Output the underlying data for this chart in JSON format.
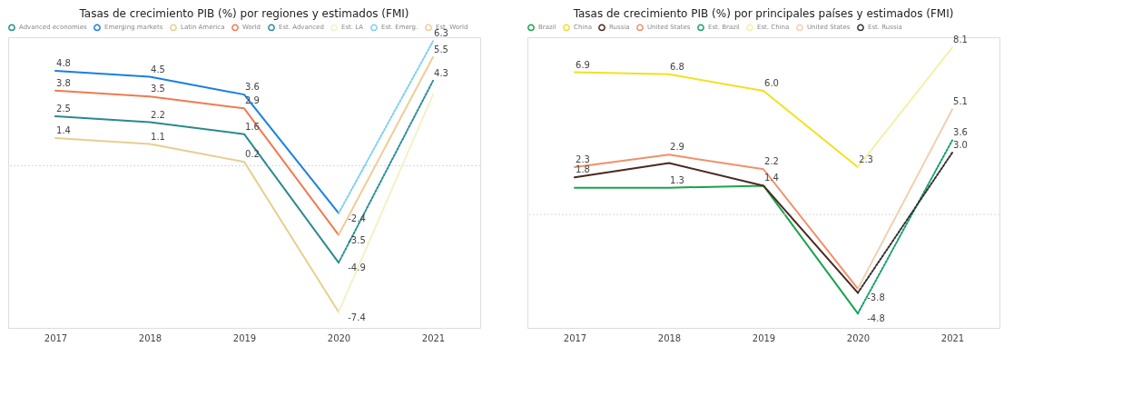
{
  "chart_data": [
    {
      "type": "line",
      "title": "Tasas de crecimiento PIB (%) por regiones y estimados (FMI)",
      "categories": [
        "2017",
        "2018",
        "2019",
        "2020",
        "2021"
      ],
      "ylim": [
        -8.2,
        6.5
      ],
      "ref_lines": [
        {
          "axis": "y",
          "value": 0,
          "color": "#d8d8d8",
          "line_style": "dotted"
        }
      ],
      "tick_labels": "x",
      "legend": "top left",
      "marker": "none",
      "series": [
        {
          "name": "Advanced economies",
          "color": "#2a8a8c",
          "line_style": "solid",
          "values": [
            2.5,
            2.2,
            1.6,
            -4.9,
            null
          ],
          "value_labels": [
            "2.5",
            "2.2",
            "1.6",
            "-4.9",
            null
          ]
        },
        {
          "name": "Emerging markets",
          "color": "#1a7fe0",
          "line_style": "solid",
          "values": [
            4.8,
            4.5,
            3.6,
            -2.4,
            null
          ],
          "value_labels": [
            "4.8",
            "4.5",
            "3.6",
            "-2.4",
            null
          ]
        },
        {
          "name": "Latin America",
          "color": "#e6cf8e",
          "line_style": "solid",
          "values": [
            1.4,
            1.1,
            0.2,
            -7.4,
            null
          ],
          "value_labels": [
            "1.4",
            "1.1",
            "0.2",
            "-7.4",
            null
          ]
        },
        {
          "name": "World",
          "color": "#f07a50",
          "line_style": "solid",
          "values": [
            3.8,
            3.5,
            2.9,
            -3.5,
            null
          ],
          "value_labels": [
            "3.8",
            "3.5",
            "2.9",
            "-3.5",
            null
          ]
        },
        {
          "name": "Est. Advanced",
          "color": "#2a8f9a",
          "line_style": "dotted",
          "values": [
            null,
            null,
            null,
            -4.9,
            4.3
          ],
          "value_labels": [
            null,
            null,
            null,
            null,
            "4.3"
          ]
        },
        {
          "name": "Est. LA",
          "color": "#f5f0c8",
          "line_style": "solid",
          "values": [
            null,
            null,
            null,
            -7.4,
            3.6
          ],
          "value_labels": [
            null,
            null,
            null,
            null,
            null
          ]
        },
        {
          "name": "Est. Emerg.",
          "color": "#7fd0f2",
          "line_style": "dotted",
          "values": [
            null,
            null,
            null,
            -2.4,
            6.3
          ],
          "value_labels": [
            null,
            null,
            null,
            null,
            "6.3"
          ]
        },
        {
          "name": "Est. World",
          "color": "#f2cc94",
          "line_style": "solid",
          "values": [
            null,
            null,
            null,
            -3.5,
            5.5
          ],
          "value_labels": [
            null,
            null,
            null,
            null,
            "5.5"
          ]
        }
      ]
    },
    {
      "type": "line",
      "title": "Tasas de crecimiento PIB (%) por principales países y estimados (FMI)",
      "categories": [
        "2017",
        "2018",
        "2019",
        "2020",
        "2021"
      ],
      "ylim": [
        -5.5,
        8.6
      ],
      "ref_lines": [
        {
          "axis": "y",
          "value": 0,
          "color": "#d8d8d8",
          "line_style": "dotted"
        }
      ],
      "tick_labels": "x",
      "legend": "top left",
      "marker": "none",
      "series": [
        {
          "name": "Brazil",
          "color": "#1aa34a",
          "line_style": "solid",
          "values": [
            1.3,
            1.3,
            1.4,
            -4.8,
            null
          ],
          "value_labels": [
            null,
            "1.3",
            null,
            "-4.8",
            null
          ]
        },
        {
          "name": "China",
          "color": "#f2e01f",
          "line_style": "solid",
          "values": [
            6.9,
            6.8,
            6.0,
            2.3,
            null
          ],
          "value_labels": [
            "6.9",
            "6.8",
            "6.0",
            "2.3",
            null
          ]
        },
        {
          "name": "Russia",
          "color": "#4a2a20",
          "line_style": "solid",
          "values": [
            1.8,
            2.5,
            1.4,
            -3.8,
            null
          ],
          "value_labels": [
            "1.8",
            null,
            "1.4",
            "-3.8",
            null
          ]
        },
        {
          "name": "United States",
          "color": "#f0906a",
          "line_style": "solid",
          "values": [
            2.3,
            2.9,
            2.2,
            -3.6,
            null
          ],
          "value_labels": [
            "2.3",
            "2.9",
            "2.2",
            null,
            null
          ]
        },
        {
          "name": "Est. Brazil",
          "color": "#1aa070",
          "line_style": "dotted",
          "values": [
            null,
            null,
            null,
            -4.8,
            3.6
          ],
          "value_labels": [
            null,
            null,
            null,
            null,
            "3.6"
          ]
        },
        {
          "name": "Est. China",
          "color": "#f5f0a8",
          "line_style": "solid",
          "values": [
            null,
            null,
            null,
            2.3,
            8.1
          ],
          "value_labels": [
            null,
            null,
            null,
            null,
            "8.1"
          ]
        },
        {
          "name": "United States",
          "color": "#f0d0b0",
          "line_style": "solid",
          "values": [
            null,
            null,
            null,
            -3.6,
            5.1
          ],
          "value_labels": [
            null,
            null,
            null,
            null,
            "5.1"
          ]
        },
        {
          "name": "Est. Russia",
          "color": "#333333",
          "line_style": "dotted",
          "values": [
            null,
            null,
            null,
            -3.8,
            3.0
          ],
          "value_labels": [
            null,
            null,
            null,
            null,
            "3.0"
          ]
        }
      ]
    }
  ]
}
